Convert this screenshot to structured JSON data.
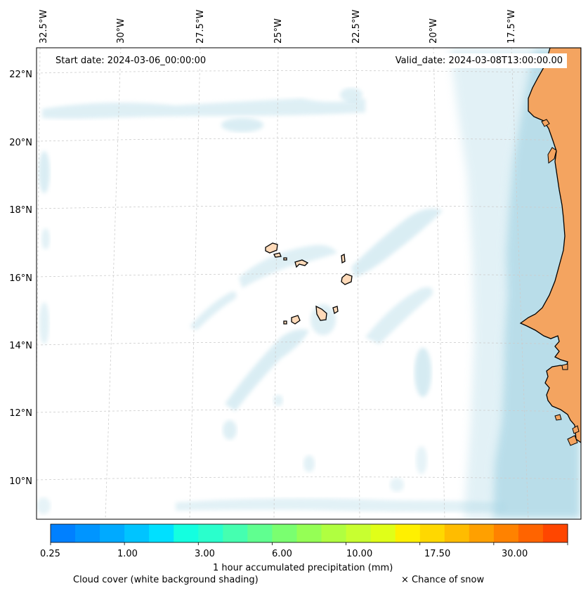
{
  "map": {
    "start_date": "Start date: 2024-03-06_00:00:00",
    "valid_date": "Valid_date: 2024-03-08T13:00:00.00",
    "lon_labels": [
      "32.5°W",
      "30°W",
      "27.5°W",
      "25°W",
      "22.5°W",
      "20°W",
      "17.5°W"
    ],
    "lat_labels": [
      "22°N",
      "20°N",
      "18°N",
      "16°N",
      "14°N",
      "12°N",
      "10°N"
    ],
    "region": "Cabo Verde and West African coast (Senegal, Mauritania, Gambia, Guinea-Bissau)",
    "colors": {
      "land_mainland": "#f4a460",
      "land_islands": "#ffdab9",
      "cloud": "#add8e6",
      "coastline": "#000000",
      "gridline": "#cccccc"
    }
  },
  "colorbar": {
    "label": "1 hour accumulated precipitation (mm)",
    "tick_labels": [
      "0.25",
      "1.00",
      "3.00",
      "6.00",
      "10.00",
      "17.50",
      "30.00"
    ],
    "colors": [
      "#0080ff",
      "#0095ff",
      "#00aaff",
      "#00c4ff",
      "#00e0ff",
      "#14ffe0",
      "#2affcc",
      "#45ffb0",
      "#60ff90",
      "#7aff70",
      "#95ff55",
      "#b0ff40",
      "#c8ff30",
      "#e0ff18",
      "#fff000",
      "#ffd800",
      "#ffbc00",
      "#ffa000",
      "#ff8200",
      "#ff6400",
      "#ff4600"
    ]
  },
  "legend": {
    "cloud_text": "Cloud cover (white background shading)",
    "snow_text": "× Chance of snow"
  }
}
